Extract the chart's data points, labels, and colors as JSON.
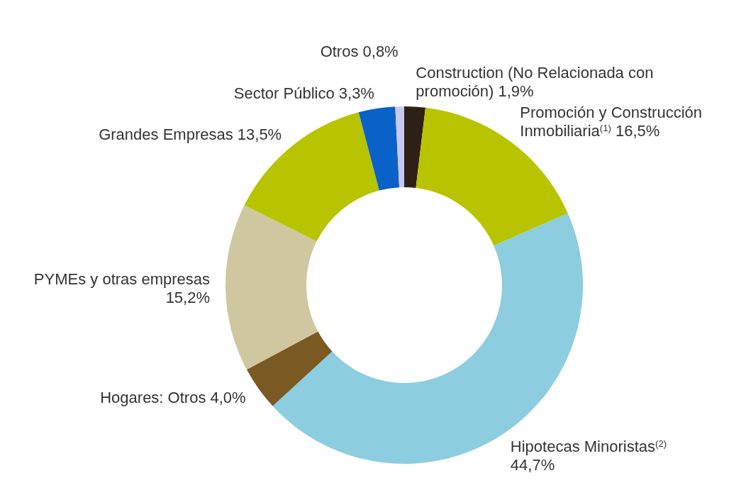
{
  "chart_data": {
    "type": "donut",
    "categories": [
      "Construction (No Relacionada con promoción)",
      "Promoción y Construcción Inmobiliaria$^{(1)}$",
      "Hipotecas Minoristas$^{(2)}$",
      "Hogares: Otros",
      "PYMEs y otras empresas",
      "Grandes Empresas",
      "Sector Público",
      "Otros"
    ],
    "values": [
      1.9,
      16.5,
      44.7,
      4.0,
      15.2,
      13.5,
      3.3,
      0.8
    ],
    "value_labels": [
      "1,9%",
      "16,5%",
      "44,7%",
      "4,0%",
      "15,2%",
      "13,5%",
      "3,3%",
      "0,8%"
    ],
    "colors": [
      "#2e2016",
      "#b8c400",
      "#8ccde0",
      "#7a5a22",
      "#cfc7a0",
      "#b8c400",
      "#0a62c8",
      "#c8c8f0"
    ]
  }
}
